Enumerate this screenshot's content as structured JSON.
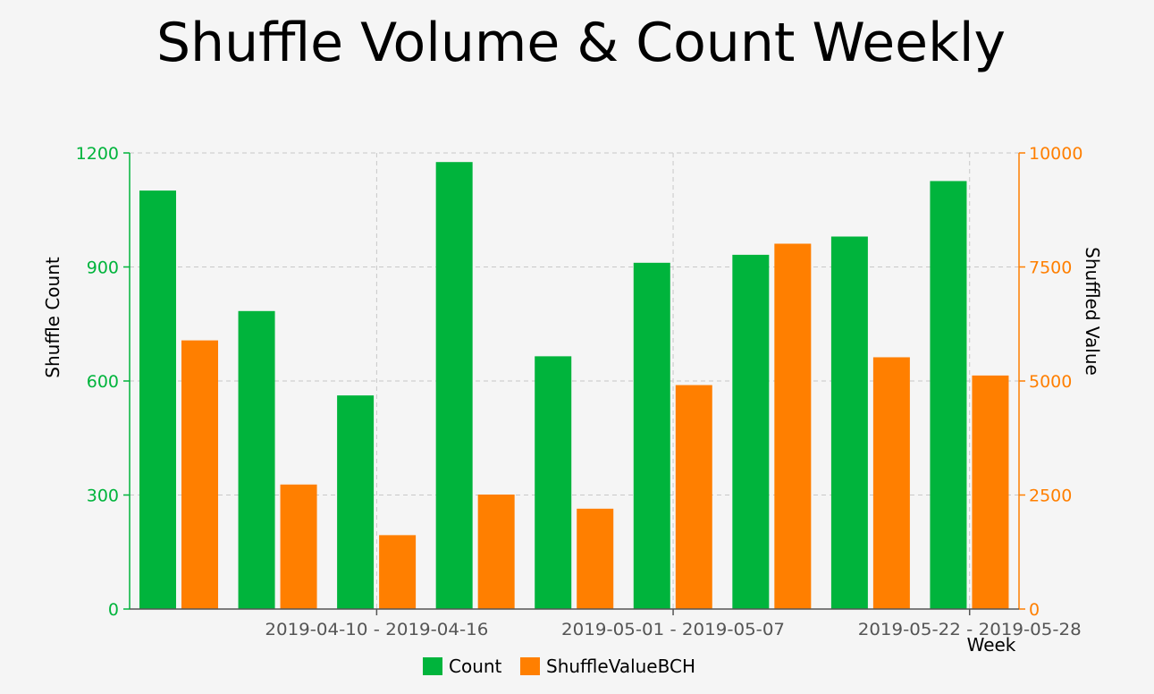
{
  "chart_data": {
    "type": "bar",
    "title": "Shuffle Volume & Count Weekly",
    "xlabel": "Week",
    "ylabel_left": "Shuffle Count",
    "ylabel_right": "Shuffled Value",
    "ylim_left": [
      0,
      1200
    ],
    "ylim_right": [
      0,
      10000
    ],
    "yticks_left": [
      "0",
      "300",
      "600",
      "900",
      "1200"
    ],
    "yticks_right": [
      "0",
      "2500",
      "5000",
      "7500",
      "10000"
    ],
    "x_tick_labels": [
      "2019-04-10 - 2019-04-16",
      "2019-05-01 - 2019-05-07",
      "2019-05-22 - 2019-05-28"
    ],
    "x_tick_positions": [
      2.5,
      5.5,
      8.5
    ],
    "grid": true,
    "legend_position": "bottom",
    "series": [
      {
        "name": "Count",
        "axis": "left",
        "color": "#00b43c",
        "values": [
          1101,
          784,
          562,
          1176,
          665,
          911,
          932,
          980,
          1126
        ]
      },
      {
        "name": "ShuffleValueBCH",
        "axis": "right",
        "color": "#ff7f00",
        "values": [
          5890,
          2730,
          1620,
          2510,
          2200,
          4910,
          8010,
          5520,
          5120
        ]
      }
    ]
  },
  "colors": {
    "left_axis": "#00b43c",
    "right_axis": "#ff7f00",
    "x_axis": "#555555",
    "grid": "#c8c8c8"
  }
}
